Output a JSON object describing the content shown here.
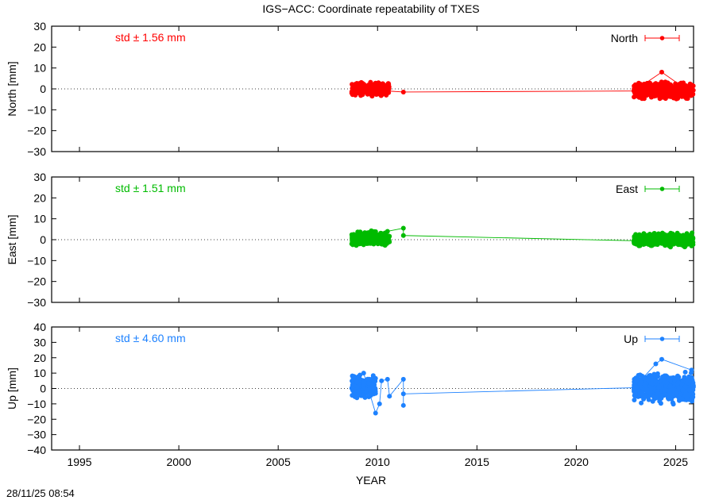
{
  "title": "IGS−ACC: Coordinate repeatability of TXES",
  "xlabel": "YEAR",
  "timestamp": "28/11/25 08:54",
  "chart_data": [
    {
      "type": "scatter",
      "name": "North",
      "ylabel": "North [mm]",
      "color": "#ff0000",
      "std_label": "std ± 1.56 mm",
      "ylim": [
        -30,
        30
      ],
      "yticks": [
        -30,
        -20,
        -10,
        0,
        10,
        20,
        30
      ],
      "xlim": [
        1993.6,
        2025.9
      ],
      "xticks": [
        1995,
        2000,
        2005,
        2010,
        2015,
        2020,
        2025
      ],
      "legend": "top-right",
      "clusters": [
        {
          "x_range": [
            2008.7,
            2010.6
          ],
          "y_range": [
            -4,
            4
          ]
        },
        {
          "x_range": [
            2022.9,
            2025.9
          ],
          "y_range": [
            -6,
            4
          ]
        }
      ],
      "points": [
        [
          2008.7,
          -2
        ],
        [
          2009.0,
          1
        ],
        [
          2009.3,
          -1
        ],
        [
          2009.6,
          2
        ],
        [
          2009.9,
          -1
        ],
        [
          2010.2,
          1
        ],
        [
          2010.5,
          -1
        ],
        [
          2011.3,
          -1.5
        ],
        [
          2022.9,
          -1
        ],
        [
          2024.3,
          8
        ],
        [
          2025.8,
          -2
        ]
      ]
    },
    {
      "type": "scatter",
      "name": "East",
      "ylabel": "East [mm]",
      "color": "#00bb00",
      "std_label": "std ± 1.51 mm",
      "ylim": [
        -30,
        30
      ],
      "yticks": [
        -30,
        -20,
        -10,
        0,
        10,
        20,
        30
      ],
      "xlim": [
        1993.6,
        2025.9
      ],
      "xticks": [
        1995,
        2000,
        2005,
        2010,
        2015,
        2020,
        2025
      ],
      "legend": "top-right",
      "clusters": [
        {
          "x_range": [
            2008.7,
            2010.6
          ],
          "y_range": [
            -4,
            5
          ]
        },
        {
          "x_range": [
            2022.9,
            2025.9
          ],
          "y_range": [
            -4,
            4
          ]
        }
      ],
      "points": [
        [
          2008.7,
          -2
        ],
        [
          2009.0,
          0
        ],
        [
          2009.4,
          1
        ],
        [
          2009.8,
          2
        ],
        [
          2010.2,
          3
        ],
        [
          2010.5,
          4
        ],
        [
          2011.3,
          5.5
        ],
        [
          2011.3,
          2
        ],
        [
          2022.9,
          -0.5
        ],
        [
          2025.8,
          -3
        ]
      ]
    },
    {
      "type": "scatter",
      "name": "Up",
      "ylabel": "Up [mm]",
      "color": "#1e82ff",
      "std_label": "std ± 4.60 mm",
      "ylim": [
        -40,
        40
      ],
      "yticks": [
        -40,
        -30,
        -20,
        -10,
        0,
        10,
        20,
        30,
        40
      ],
      "xlim": [
        1993.6,
        2025.9
      ],
      "xticks": [
        1995,
        2000,
        2005,
        2010,
        2015,
        2020,
        2025
      ],
      "legend": "top-right",
      "clusters": [
        {
          "x_range": [
            2008.7,
            2009.9
          ],
          "y_range": [
            -8,
            10
          ]
        },
        {
          "x_range": [
            2022.9,
            2025.9
          ],
          "y_range": [
            -12,
            13
          ]
        }
      ],
      "points": [
        [
          2009.3,
          10
        ],
        [
          2009.9,
          -16
        ],
        [
          2010.1,
          -10
        ],
        [
          2010.2,
          5
        ],
        [
          2010.5,
          6
        ],
        [
          2010.6,
          -5
        ],
        [
          2011.3,
          6
        ],
        [
          2011.3,
          -11
        ],
        [
          2011.3,
          -3.5
        ],
        [
          2022.9,
          0.5
        ],
        [
          2024.0,
          16
        ],
        [
          2024.3,
          19
        ],
        [
          2025.8,
          12
        ]
      ]
    }
  ]
}
